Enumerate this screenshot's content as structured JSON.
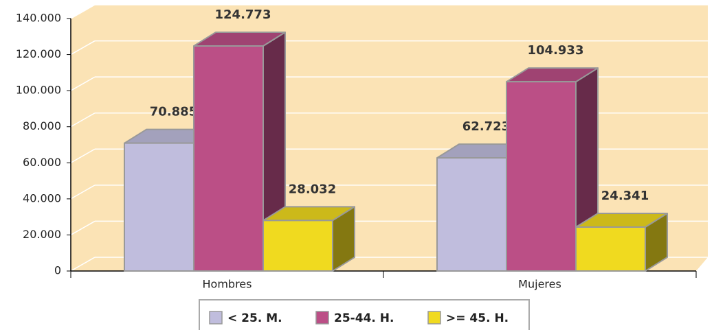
{
  "chart_data": {
    "type": "bar3d",
    "categories": [
      "Hombres",
      "Mujeres"
    ],
    "series": [
      {
        "name": "< 25. M.",
        "color": "#c0bddd",
        "values": [
          70885,
          62723
        ],
        "value_labels": [
          "70.885",
          "62.723"
        ]
      },
      {
        "name": "25-44. H.",
        "color": "#bb4f86",
        "values": [
          124773,
          104933
        ],
        "value_labels": [
          "124.773",
          "104.933"
        ]
      },
      {
        "name": ">= 45. H.",
        "color": "#f0da1f",
        "values": [
          28032,
          24341
        ],
        "value_labels": [
          "28.032",
          "24.341"
        ]
      }
    ],
    "ylim": [
      0,
      140000
    ],
    "yticks": [
      0,
      {
        "value": 20000,
        "label": "20.000"
      },
      {
        "value": 40000,
        "label": "40.000"
      },
      {
        "value": 60000,
        "label": "60.000"
      },
      {
        "value": 80000,
        "label": "80.000"
      },
      {
        "value": 100000,
        "label": "100.000"
      },
      {
        "value": 120000,
        "label": "120.000"
      },
      {
        "value": 140000,
        "label": "140.000"
      }
    ],
    "grid": true,
    "legend": "bottom"
  }
}
